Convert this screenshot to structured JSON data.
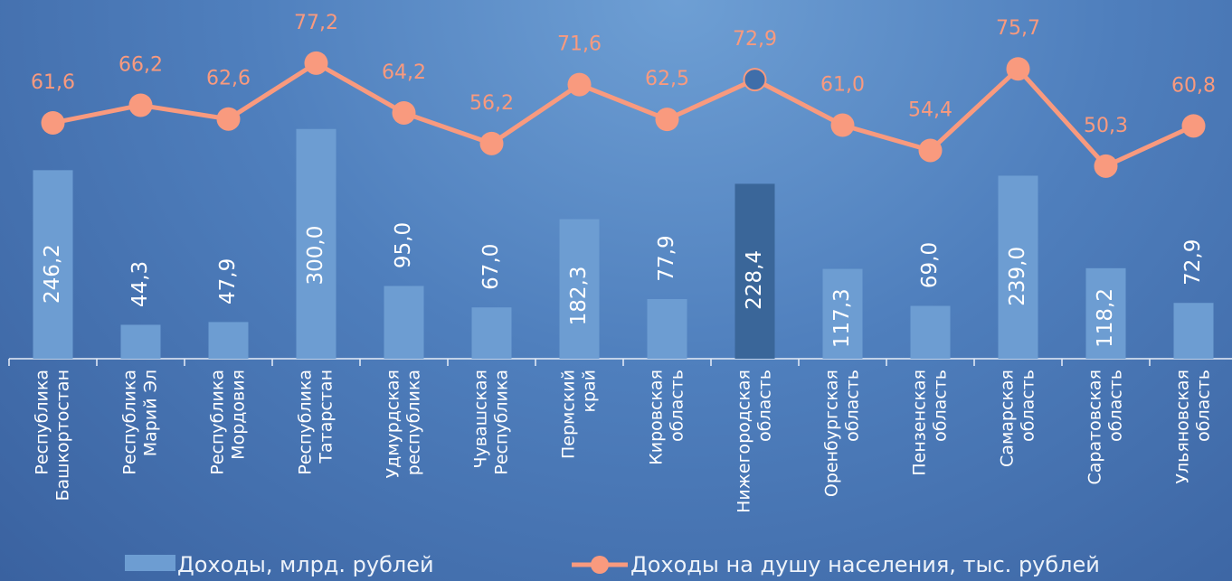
{
  "chart_data": {
    "type": "bar_line",
    "categories": [
      [
        "Республика",
        "Башкортостан"
      ],
      [
        "Республика",
        "Марий Эл"
      ],
      [
        "Республика",
        "Мордовия"
      ],
      [
        "Республика",
        "Татарстан"
      ],
      [
        "Удмурдская",
        "республика"
      ],
      [
        "Чувашская",
        "Республика"
      ],
      [
        "Пермский",
        "край"
      ],
      [
        "Кировская",
        "область"
      ],
      [
        "Нижегородская",
        "область"
      ],
      [
        "Оренбургская",
        "область"
      ],
      [
        "Пензенская",
        "область"
      ],
      [
        "Самарская",
        "область"
      ],
      [
        "Саратовская",
        "область"
      ],
      [
        "Ульяновская",
        "область"
      ]
    ],
    "series": [
      {
        "name": "Доходы, млрд. рублей",
        "type": "bar",
        "color": "#6d9dd2",
        "highlight_color": "#3a6699",
        "values": [
          246.2,
          44.3,
          47.9,
          300.0,
          95.0,
          67.0,
          182.3,
          77.9,
          228.4,
          117.3,
          69.0,
          239.0,
          118.2,
          72.9
        ],
        "value_labels": [
          "246,2",
          "44,3",
          "47,9",
          "300,0",
          "95,0",
          "67,0",
          "182,3",
          "77,9",
          "228,4",
          "117,3",
          "69,0",
          "239,0",
          "118,2",
          "72,9"
        ]
      },
      {
        "name": "Доходы на душу населения, тыс. рублей",
        "type": "line",
        "axis": "y2",
        "color": "#f99a7e",
        "highlight_color": "#3f6eaa",
        "values": [
          61.6,
          66.2,
          62.6,
          77.2,
          64.2,
          56.2,
          71.6,
          62.5,
          72.9,
          61.0,
          54.4,
          75.7,
          50.3,
          60.8
        ],
        "value_labels": [
          "61,6",
          "66,2",
          "62,6",
          "77,2",
          "64,2",
          "56,2",
          "71,6",
          "62,5",
          "72,9",
          "61,0",
          "54,4",
          "75,7",
          "50,3",
          "60,8"
        ]
      }
    ],
    "highlight_index": 8,
    "ylim": [
      0,
      400
    ],
    "y2lim": [
      0,
      80
    ]
  }
}
